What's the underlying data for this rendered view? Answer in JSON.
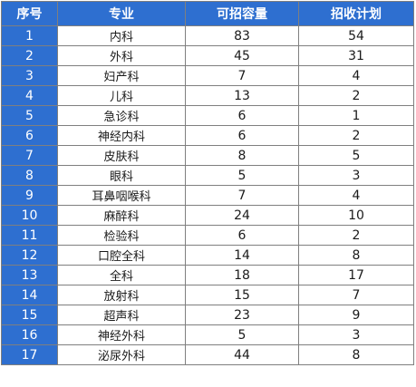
{
  "table": {
    "headers": {
      "index": "序号",
      "major": "专业",
      "capacity": "可招容量",
      "plan": "招收计划"
    },
    "rows": [
      {
        "index": "1",
        "major": "内科",
        "capacity": "83",
        "plan": "54"
      },
      {
        "index": "2",
        "major": "外科",
        "capacity": "45",
        "plan": "31"
      },
      {
        "index": "3",
        "major": "妇产科",
        "capacity": "7",
        "plan": "4"
      },
      {
        "index": "4",
        "major": "儿科",
        "capacity": "13",
        "plan": "2"
      },
      {
        "index": "5",
        "major": "急诊科",
        "capacity": "6",
        "plan": "1"
      },
      {
        "index": "6",
        "major": "神经内科",
        "capacity": "6",
        "plan": "2"
      },
      {
        "index": "7",
        "major": "皮肤科",
        "capacity": "8",
        "plan": "5"
      },
      {
        "index": "8",
        "major": "眼科",
        "capacity": "5",
        "plan": "3"
      },
      {
        "index": "9",
        "major": "耳鼻咽喉科",
        "capacity": "7",
        "plan": "4"
      },
      {
        "index": "10",
        "major": "麻醉科",
        "capacity": "24",
        "plan": "10"
      },
      {
        "index": "11",
        "major": "检验科",
        "capacity": "6",
        "plan": "2"
      },
      {
        "index": "12",
        "major": "口腔全科",
        "capacity": "14",
        "plan": "8"
      },
      {
        "index": "13",
        "major": "全科",
        "capacity": "18",
        "plan": "17"
      },
      {
        "index": "14",
        "major": "放射科",
        "capacity": "15",
        "plan": "7"
      },
      {
        "index": "15",
        "major": "超声科",
        "capacity": "23",
        "plan": "9"
      },
      {
        "index": "16",
        "major": "神经外科",
        "capacity": "5",
        "plan": "3"
      },
      {
        "index": "17",
        "major": "泌尿外科",
        "capacity": "44",
        "plan": "8"
      }
    ]
  },
  "colors": {
    "header_bg": "#2e6fd0",
    "header_text": "#ffffff",
    "grid_line": "#7f7f7f",
    "cell_text": "#1a1a1a"
  }
}
